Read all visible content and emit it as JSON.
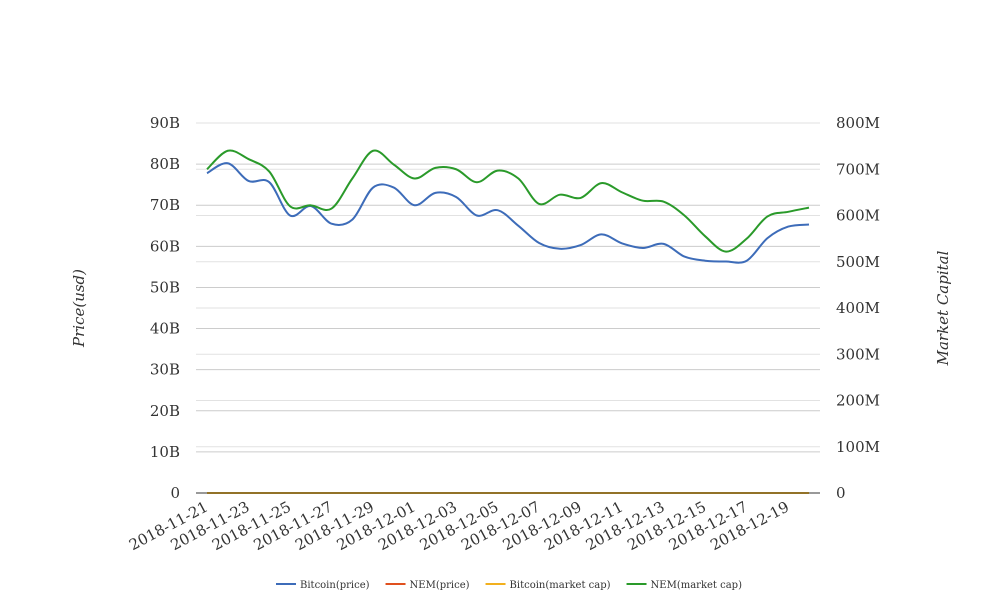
{
  "chart_data": {
    "type": "line",
    "title": "",
    "xlabel": "",
    "ylabel_left": "Price(usd)",
    "ylabel_right": "Market Capital",
    "x_tick_labels": [
      "2018-11-21",
      "2018-11-23",
      "2018-11-25",
      "2018-11-27",
      "2018-11-29",
      "2018-12-01",
      "2018-12-03",
      "2018-12-05",
      "2018-12-07",
      "2018-12-09",
      "2018-12-11",
      "2018-12-13",
      "2018-12-15",
      "2018-12-17",
      "2018-12-19"
    ],
    "x": [
      "2018-11-21",
      "2018-11-22",
      "2018-11-23",
      "2018-11-24",
      "2018-11-25",
      "2018-11-26",
      "2018-11-27",
      "2018-11-28",
      "2018-11-29",
      "2018-11-30",
      "2018-12-01",
      "2018-12-02",
      "2018-12-03",
      "2018-12-04",
      "2018-12-05",
      "2018-12-06",
      "2018-12-07",
      "2018-12-08",
      "2018-12-09",
      "2018-12-10",
      "2018-12-11",
      "2018-12-12",
      "2018-12-13",
      "2018-12-14",
      "2018-12-15",
      "2018-12-16",
      "2018-12-17",
      "2018-12-18",
      "2018-12-19",
      "2018-12-20"
    ],
    "y_left": {
      "min": 0,
      "max": 90000000000,
      "ticks": [
        0,
        10000000000,
        20000000000,
        30000000000,
        40000000000,
        50000000000,
        60000000000,
        70000000000,
        80000000000,
        90000000000
      ],
      "tick_labels": [
        "0",
        "10B",
        "20B",
        "30B",
        "40B",
        "50B",
        "60B",
        "70B",
        "80B",
        "90B"
      ]
    },
    "y_right": {
      "min": 0,
      "max": 800000000,
      "ticks": [
        0,
        100000000,
        200000000,
        300000000,
        400000000,
        500000000,
        600000000,
        700000000,
        800000000
      ],
      "tick_labels": [
        "0",
        "100M",
        "200M",
        "300M",
        "400M",
        "500M",
        "600M",
        "700M",
        "800M"
      ]
    },
    "grid": true,
    "legend_position": "bottom",
    "series": [
      {
        "name": "Bitcoin(price)",
        "axis": "left",
        "color": "#3d6cb9",
        "values": [
          77800000000,
          80200000000,
          75900000000,
          75600000000,
          67500000000,
          69800000000,
          65500000000,
          66500000000,
          74300000000,
          74300000000,
          70000000000,
          73000000000,
          72000000000,
          67500000000,
          68800000000,
          65000000000,
          60800000000,
          59400000000,
          60300000000,
          62900000000,
          60700000000,
          59600000000,
          60600000000,
          57500000000,
          56500000000,
          56300000000,
          56500000000,
          62000000000,
          64800000000,
          65300000000
        ]
      },
      {
        "name": "NEM(price)",
        "axis": "left",
        "color": "#e0501e",
        "values": [
          0.0735,
          0.0734,
          0.0705,
          0.0702,
          0.0655,
          0.0643,
          0.0638,
          0.0685,
          0.0752,
          0.0728,
          0.0693,
          0.0719,
          0.0722,
          0.0685,
          0.0708,
          0.0705,
          0.0632,
          0.0654,
          0.0648,
          0.0685,
          0.0665,
          0.0645,
          0.0648,
          0.0615,
          0.0572,
          0.0535,
          0.0565,
          0.0605,
          0.0612,
          0.0625
        ]
      },
      {
        "name": "Bitcoin(market cap)",
        "axis": "right",
        "color": "#f2b01e",
        "values": [
          0.0005,
          0.0005,
          0.0005,
          0.0005,
          0.0005,
          0.0005,
          0.0005,
          0.0005,
          0.0005,
          0.0005,
          0.0005,
          0.0005,
          0.0005,
          0.0005,
          0.0005,
          0.0005,
          0.0005,
          0.0005,
          0.0005,
          0.0005,
          0.0005,
          0.0005,
          0.0005,
          0.0005,
          0.0005,
          0.0005,
          0.0005,
          0.0005,
          0.0005,
          0.0005
        ]
      },
      {
        "name": "NEM(market cap)",
        "axis": "right",
        "color": "#2a9a2a",
        "values": [
          700000000,
          740000000,
          722000000,
          695000000,
          620000000,
          622000000,
          615000000,
          680000000,
          740000000,
          710000000,
          680000000,
          703000000,
          700000000,
          672000000,
          697000000,
          680000000,
          625000000,
          645000000,
          638000000,
          670000000,
          650000000,
          632000000,
          630000000,
          600000000,
          555000000,
          522000000,
          550000000,
          598000000,
          608000000,
          617000000
        ]
      }
    ]
  }
}
